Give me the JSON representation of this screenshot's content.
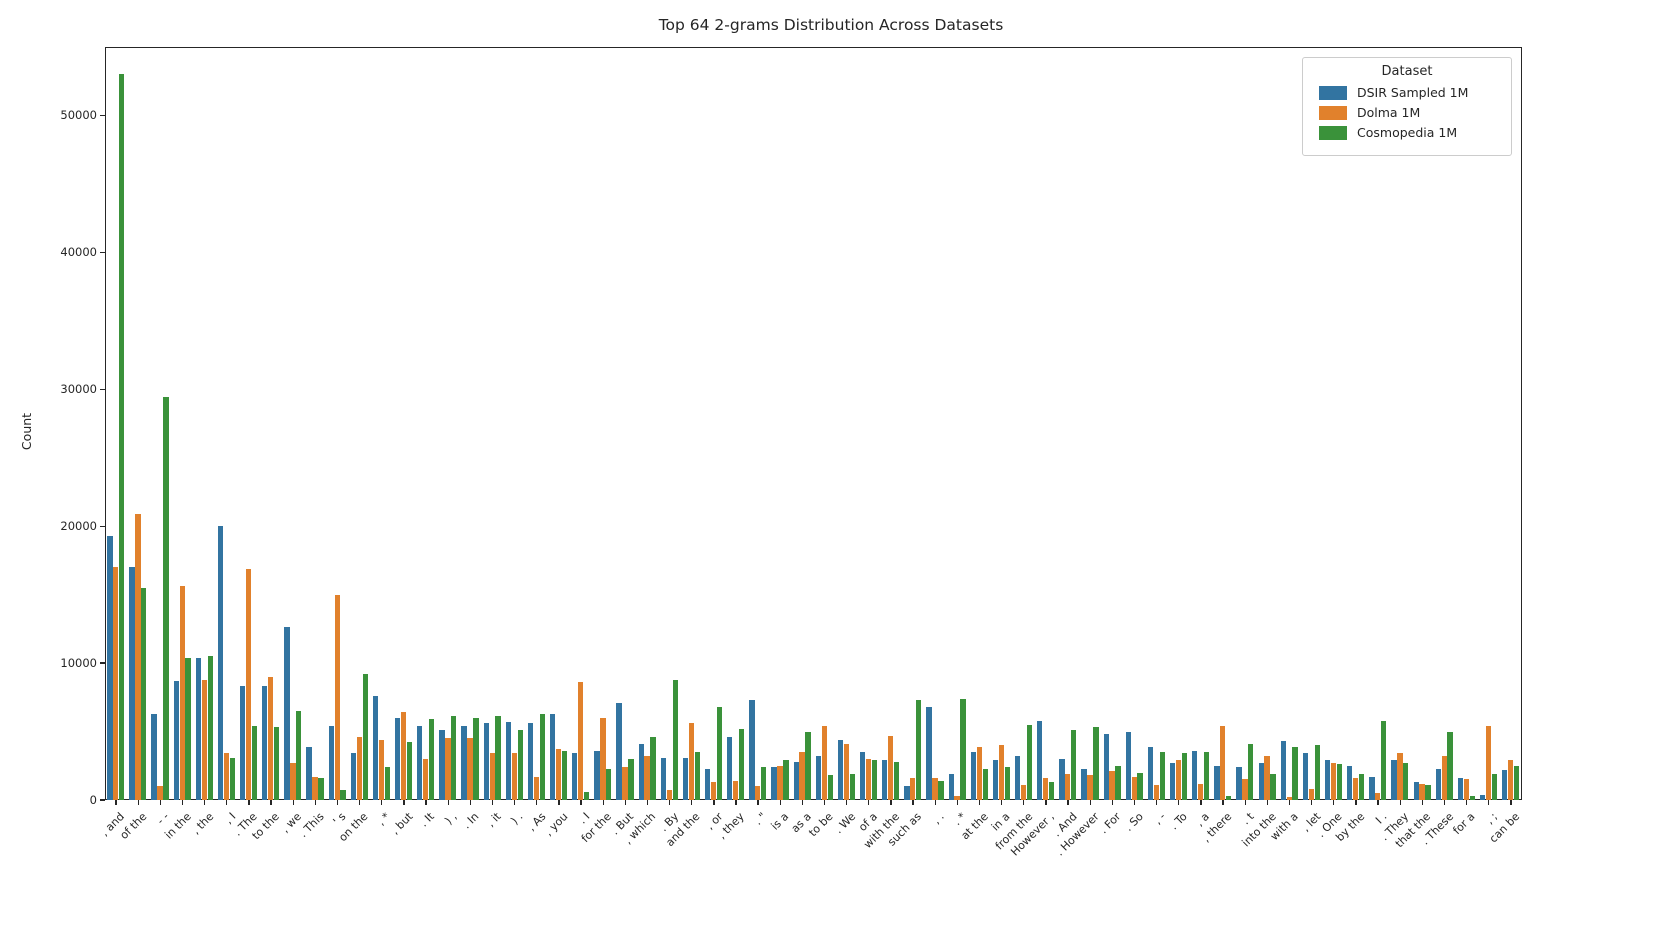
{
  "title": "Top 64 2-grams Distribution Across Datasets",
  "legend": {
    "title": "Dataset",
    "entries": [
      {
        "label": "DSIR Sampled 1M",
        "color": "#3274a1"
      },
      {
        "label": "Dolma 1M",
        "color": "#e1812c"
      },
      {
        "label": "Cosmopedia 1M",
        "color": "#3a923a"
      }
    ]
  },
  "chart_data": {
    "type": "bar",
    "title": "Top 64 2-grams Distribution Across Datasets",
    "xlabel": "",
    "ylabel": "Count",
    "ylim": [
      0,
      55000
    ],
    "yticks": [
      0,
      10000,
      20000,
      30000,
      40000,
      50000
    ],
    "grid": false,
    "legend_position": "upper right",
    "categories": [
      ", and",
      "of the",
      "- -",
      "in the",
      ", the",
      ", I",
      ". The",
      "to the",
      ", we",
      ". This",
      "' s",
      "on the",
      ", *",
      ", but",
      ". It",
      ") ,",
      ". In",
      ", it",
      ") .",
      ", As",
      ", you",
      ". I",
      "for the",
      ". But",
      ", which",
      ". By",
      "and the",
      ", or",
      ", they",
      ". \"",
      "is a",
      "as a",
      "to be",
      ". We",
      "of a",
      "with the",
      "such as",
      ", .",
      ". *",
      "at the",
      "in a",
      "from the",
      "However ,",
      ". And",
      ". However",
      ". For",
      ". So",
      ", -",
      ". To",
      ", a",
      ", there",
      ". t",
      "into the",
      "with a",
      ", let",
      ". One",
      "by the",
      "I .",
      ". They",
      "that the",
      ". These",
      "for a",
      ", ;",
      "can be"
    ],
    "series": [
      {
        "name": "DSIR Sampled 1M",
        "color": "#3274a1",
        "values": [
          19300,
          17000,
          6300,
          8700,
          10400,
          20000,
          8300,
          8300,
          12600,
          3900,
          5400,
          3400,
          7600,
          6000,
          5400,
          5100,
          5400,
          5600,
          5700,
          5600,
          6300,
          3400,
          3600,
          7100,
          4100,
          3100,
          3100,
          2300,
          4600,
          7300,
          2400,
          2800,
          3200,
          4400,
          3500,
          2900,
          1000,
          6800,
          1900,
          3500,
          2900,
          3200,
          5800,
          3000,
          2300,
          4800,
          5000,
          3900,
          2700,
          3600,
          2500,
          2400,
          2700,
          4300,
          3400,
          2900,
          2500,
          1700,
          2900,
          1300,
          2300,
          1600,
          400,
          2200
        ],
        "pixel_note": "blue"
      },
      {
        "name": "Dolma 1M",
        "color": "#e1812c",
        "values": [
          17000,
          20900,
          1000,
          15600,
          8800,
          3400,
          16900,
          9000,
          2700,
          1700,
          15000,
          4600,
          4400,
          6400,
          3000,
          4500,
          4500,
          3400,
          3400,
          1700,
          3700,
          8600,
          6000,
          2400,
          3200,
          700,
          5600,
          1300,
          1400,
          1000,
          2500,
          3500,
          5400,
          4100,
          3000,
          4700,
          1600,
          1600,
          300,
          3900,
          4000,
          1100,
          1600,
          1900,
          1800,
          2100,
          1700,
          1100,
          2900,
          1200,
          5400,
          1500,
          3200,
          200,
          800,
          2700,
          1600,
          500,
          3400,
          1200,
          3200,
          1500,
          5400,
          2900
        ],
        "pixel_note": "orange"
      },
      {
        "name": "Cosmopedia 1M",
        "color": "#3a923a",
        "values": [
          53000,
          15500,
          29400,
          10400,
          10500,
          3100,
          5400,
          5300,
          6500,
          1600,
          700,
          9200,
          2400,
          4200,
          5900,
          6100,
          6000,
          6100,
          5100,
          6300,
          3600,
          600,
          2300,
          3000,
          4600,
          8800,
          3500,
          6800,
          5200,
          2400,
          2900,
          5000,
          1800,
          1900,
          2900,
          2800,
          7300,
          1400,
          7400,
          2300,
          2400,
          5500,
          1300,
          5100,
          5300,
          2500,
          2000,
          3500,
          3400,
          3500,
          300,
          4100,
          1900,
          3900,
          4000,
          2600,
          1900,
          5800,
          2700,
          1100,
          5000,
          300,
          1900,
          2500
        ],
        "pixel_note": "green"
      }
    ]
  },
  "axes": {
    "ylabel": "Count",
    "ytick_labels": [
      "0",
      "10000",
      "20000",
      "30000",
      "40000",
      "50000"
    ]
  }
}
